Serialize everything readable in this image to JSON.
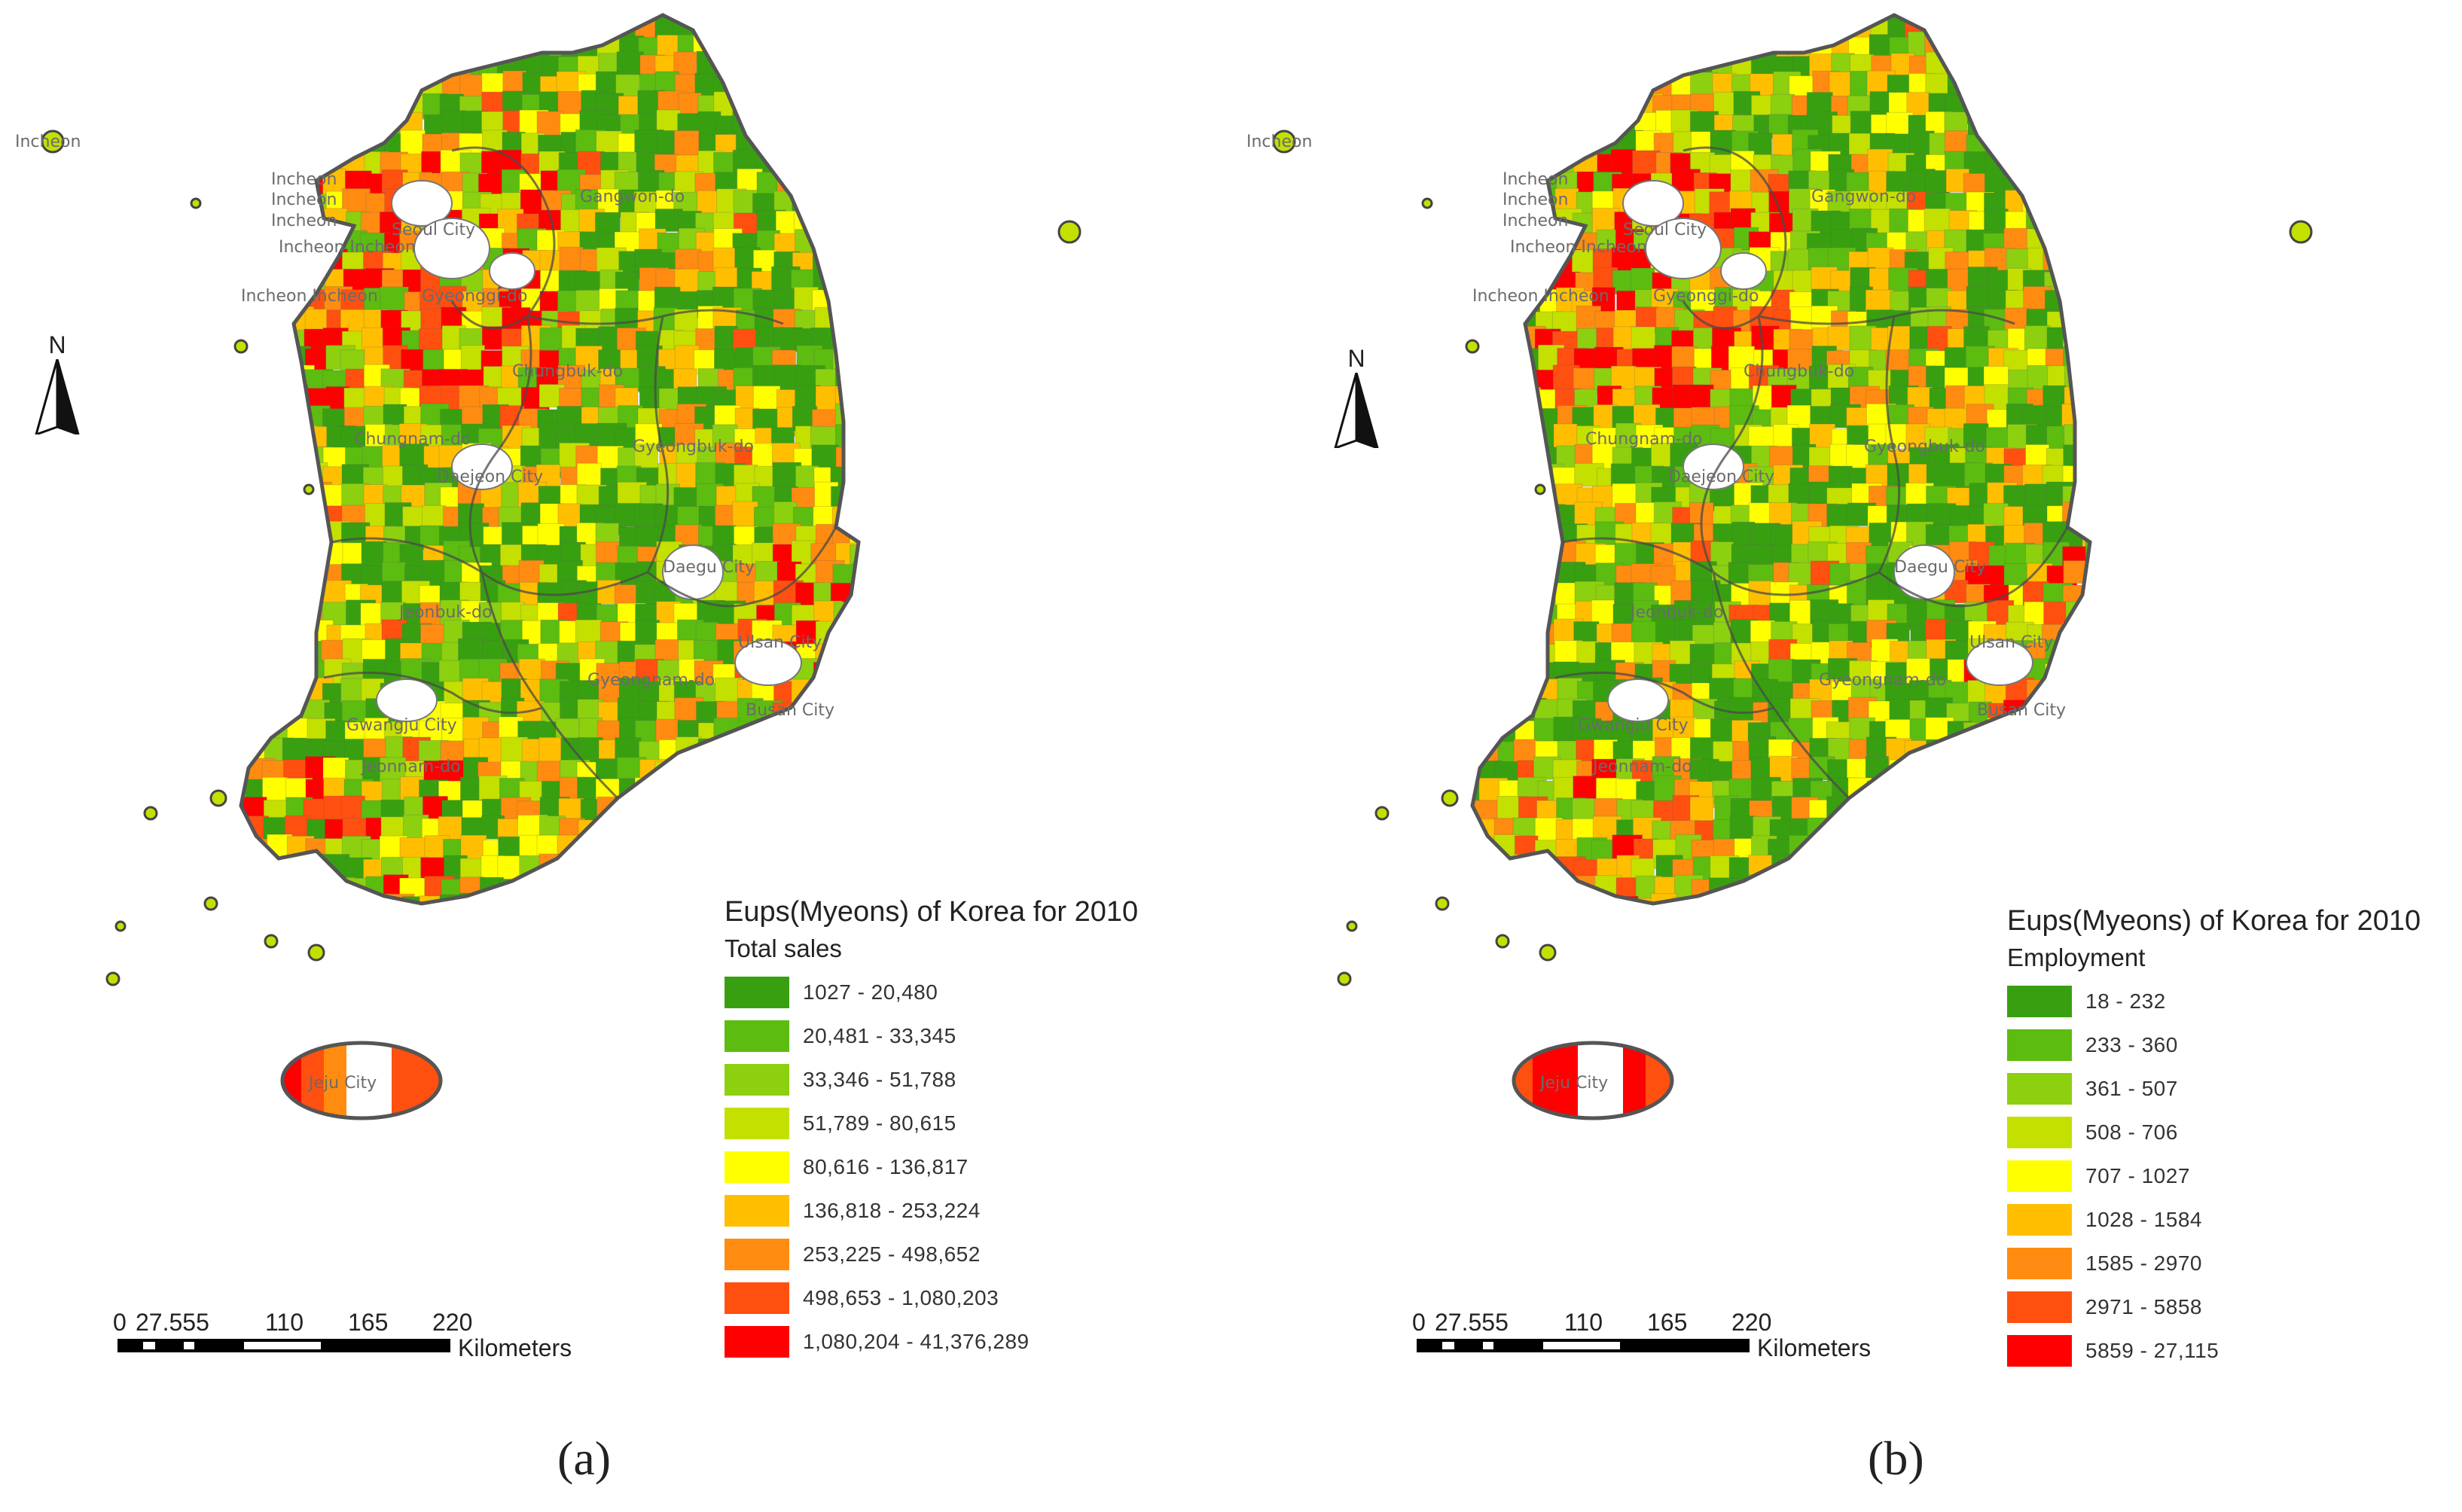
{
  "panels": [
    {
      "caption": "(a)",
      "legend_title": "Eups(Myeons) of Korea for 2010",
      "legend_subtitle": "Total sales",
      "classes": [
        {
          "label": "1027 - 20,480",
          "color": "#38a010"
        },
        {
          "label": "20,481 - 33,345",
          "color": "#5cbc10"
        },
        {
          "label": "33,346 - 51,788",
          "color": "#8cd010"
        },
        {
          "label": "51,789 - 80,615",
          "color": "#c4e000"
        },
        {
          "label": "80,616 - 136,817",
          "color": "#ffff00"
        },
        {
          "label": "136,818 - 253,224",
          "color": "#ffbf00"
        },
        {
          "label": "253,225 - 498,652",
          "color": "#ff8c10"
        },
        {
          "label": "498,653 - 1,080,203",
          "color": "#ff5010"
        },
        {
          "label": "1,080,204 - 41,376,289",
          "color": "#ff0000"
        }
      ],
      "region_labels": [
        "Incheon",
        "Incheon",
        "Incheon",
        "Incheon",
        "Seoul City",
        "Incheon Incheon",
        "Incheon Incheon",
        "Gyeonggi-do",
        "Gangwon-do",
        "Chungbuk-do",
        "Chungnam-do",
        "Daejeon City",
        "Gyeongbuk-do",
        "Daegu City",
        "Jeonbuk-do",
        "Ulsan City",
        "Gyeongnam-do",
        "Busan City",
        "Gwangju City",
        "Jeonnam-do",
        "Jeju City"
      ]
    },
    {
      "caption": "(b)",
      "legend_title": "Eups(Myeons) of Korea for 2010",
      "legend_subtitle": "Employment",
      "classes": [
        {
          "label": "18 - 232",
          "color": "#38a010"
        },
        {
          "label": "233 - 360",
          "color": "#5cbc10"
        },
        {
          "label": "361 - 507",
          "color": "#8cd010"
        },
        {
          "label": "508 - 706",
          "color": "#c4e000"
        },
        {
          "label": "707 - 1027",
          "color": "#ffff00"
        },
        {
          "label": "1028 - 1584",
          "color": "#ffbf00"
        },
        {
          "label": "1585 - 2970",
          "color": "#ff8c10"
        },
        {
          "label": "2971 - 5858",
          "color": "#ff5010"
        },
        {
          "label": "5859 - 27,115",
          "color": "#ff0000"
        }
      ],
      "region_labels": [
        "Incheon",
        "Incheon",
        "Incheon",
        "Incheon",
        "Seoul City",
        "Incheon Incheon",
        "Incheon Incheon",
        "Gyeonggi-do",
        "Gangwon-do",
        "Chungbuk-do",
        "Chungnam-do",
        "Daejeon City",
        "Gyeongbuk-do",
        "Daegu City",
        "Jeonbuk-do",
        "Ulsan City",
        "Gyeongnam-do",
        "Busan City",
        "Gwangju City",
        "Jeonnam-do",
        "Jeju City"
      ]
    }
  ],
  "scalebar": {
    "ticks": [
      "0",
      "27.555",
      "110",
      "165",
      "220"
    ],
    "unit": "Kilometers"
  },
  "north_arrow": {
    "letter": "N"
  }
}
